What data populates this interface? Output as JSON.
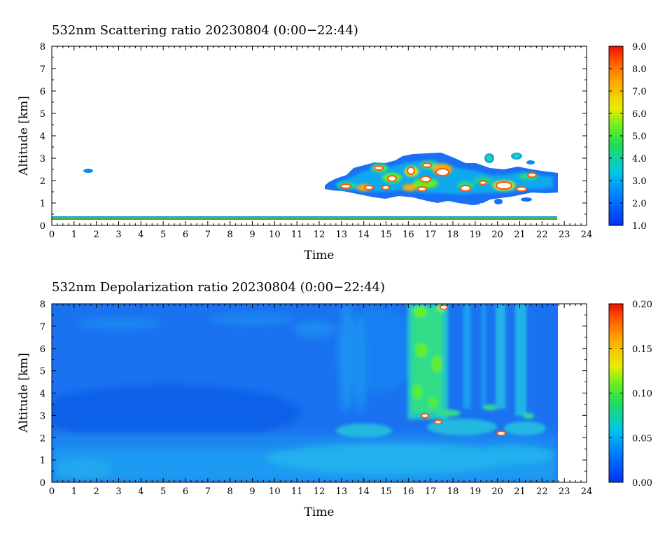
{
  "chart_data": [
    {
      "type": "heatmap",
      "title": "532nm Scattering ratio  20230804 (0:00−22:44)",
      "xlabel": "Time",
      "ylabel": "Altitude [km]",
      "xlim": [
        0,
        24
      ],
      "ylim": [
        0,
        8
      ],
      "x_ticks": [
        "0",
        "1",
        "2",
        "3",
        "4",
        "5",
        "6",
        "7",
        "8",
        "9",
        "10",
        "11",
        "12",
        "13",
        "14",
        "15",
        "16",
        "17",
        "18",
        "19",
        "20",
        "21",
        "22",
        "23",
        "24"
      ],
      "y_ticks": [
        "0",
        "1",
        "2",
        "3",
        "4",
        "5",
        "6",
        "7",
        "8"
      ],
      "colorbar": {
        "min": 1.0,
        "max": 9.0,
        "ticks": [
          "1.0",
          "2.0",
          "3.0",
          "4.0",
          "5.0",
          "6.0",
          "7.0",
          "8.0",
          "9.0"
        ]
      },
      "data_end_time": 22.73,
      "features": [
        {
          "kind": "surface_layer",
          "x": [
            0,
            22.7
          ],
          "y": 0.3,
          "value": 8.0
        },
        {
          "kind": "cloud_patch",
          "x": 1.6,
          "y": 2.4,
          "value": 2.5
        },
        {
          "kind": "cloud_field",
          "x": [
            12.3,
            22.7
          ],
          "y": [
            1.0,
            3.1
          ],
          "value_max": 9.0
        }
      ]
    },
    {
      "type": "heatmap",
      "title": "532nm Depolarization ratio  20230804 (0:00−22:44)",
      "xlabel": "Time",
      "ylabel": "Altitude [km]",
      "xlim": [
        0,
        24
      ],
      "ylim": [
        0,
        8
      ],
      "x_ticks": [
        "0",
        "1",
        "2",
        "3",
        "4",
        "5",
        "6",
        "7",
        "8",
        "9",
        "10",
        "11",
        "12",
        "13",
        "14",
        "15",
        "16",
        "17",
        "18",
        "19",
        "20",
        "21",
        "22",
        "23",
        "24"
      ],
      "y_ticks": [
        "0",
        "1",
        "2",
        "3",
        "4",
        "5",
        "6",
        "7",
        "8"
      ],
      "colorbar": {
        "min": 0.0,
        "max": 0.2,
        "ticks": [
          "0.00",
          "0.05",
          "0.10",
          "0.15",
          "0.20"
        ]
      },
      "data_end_time": 22.73,
      "features": [
        {
          "kind": "background",
          "x": [
            0,
            22.7
          ],
          "y": [
            0,
            8
          ],
          "value": 0.02
        },
        {
          "kind": "boundary_layer",
          "x": [
            0,
            22.7
          ],
          "y": [
            0,
            1.5
          ],
          "value": 0.035
        },
        {
          "kind": "ice_column",
          "x": [
            15.9,
            17.6
          ],
          "y": [
            3.0,
            8.0
          ],
          "value": 0.08
        },
        {
          "kind": "ice_column",
          "x": [
            19.9,
            21.6
          ],
          "y": [
            3.0,
            8.0
          ],
          "value": 0.05
        }
      ]
    }
  ]
}
